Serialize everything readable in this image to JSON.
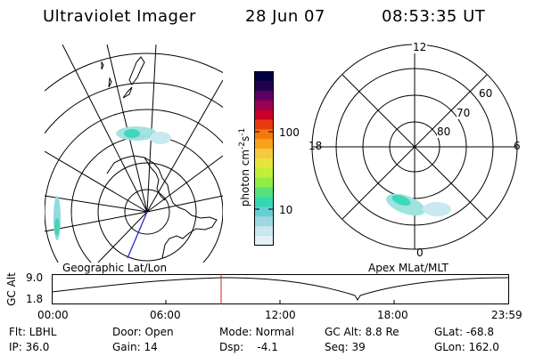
{
  "header": {
    "title": "Ultraviolet Imager",
    "date": "28 Jun 07",
    "time": "08:53:35 UT"
  },
  "geo_panel": {
    "label": "Geographic Lat/Lon"
  },
  "colorbar": {
    "unit": "photon cm",
    "unit_exp1": "-2",
    "unit_s": "s",
    "unit_exp2": "-1",
    "tick_labels": [
      "100",
      "10"
    ],
    "colors": [
      "#000040",
      "#200050",
      "#5a0060",
      "#9a0050",
      "#c80028",
      "#e83a10",
      "#f37a0c",
      "#f7a21b",
      "#f6c940",
      "#e7e43c",
      "#c2ef3a",
      "#8fed45",
      "#57e27b",
      "#35d7b2",
      "#62d0d2",
      "#9ed7e2",
      "#c8e7ef",
      "#e4f2f6"
    ]
  },
  "polar_panel": {
    "label": "Apex MLat/MLT",
    "mlt_labels": [
      "12",
      "18",
      "6",
      "0"
    ],
    "lat_labels": [
      "60",
      "70",
      "80"
    ]
  },
  "timeline": {
    "ylabel": "GC Alt",
    "y_ticks": [
      "9.0",
      "1.8"
    ],
    "x_ticks": [
      "00:00",
      "06:00",
      "12:00",
      "18:00",
      "23:59"
    ],
    "marker_time": "08:53"
  },
  "info": {
    "flt": "Flt: LBHL",
    "ip": "IP: 36.0",
    "door": "Door: Open",
    "gain": "Gain: 14",
    "mode": "Mode: Normal",
    "dsp": "Dsp:    -4.1",
    "gcalt": "GC Alt: 8.8 Re",
    "seq": "Seq: 39",
    "glat": "GLat: -68.8",
    "glon": "GLon: 162.0"
  }
}
